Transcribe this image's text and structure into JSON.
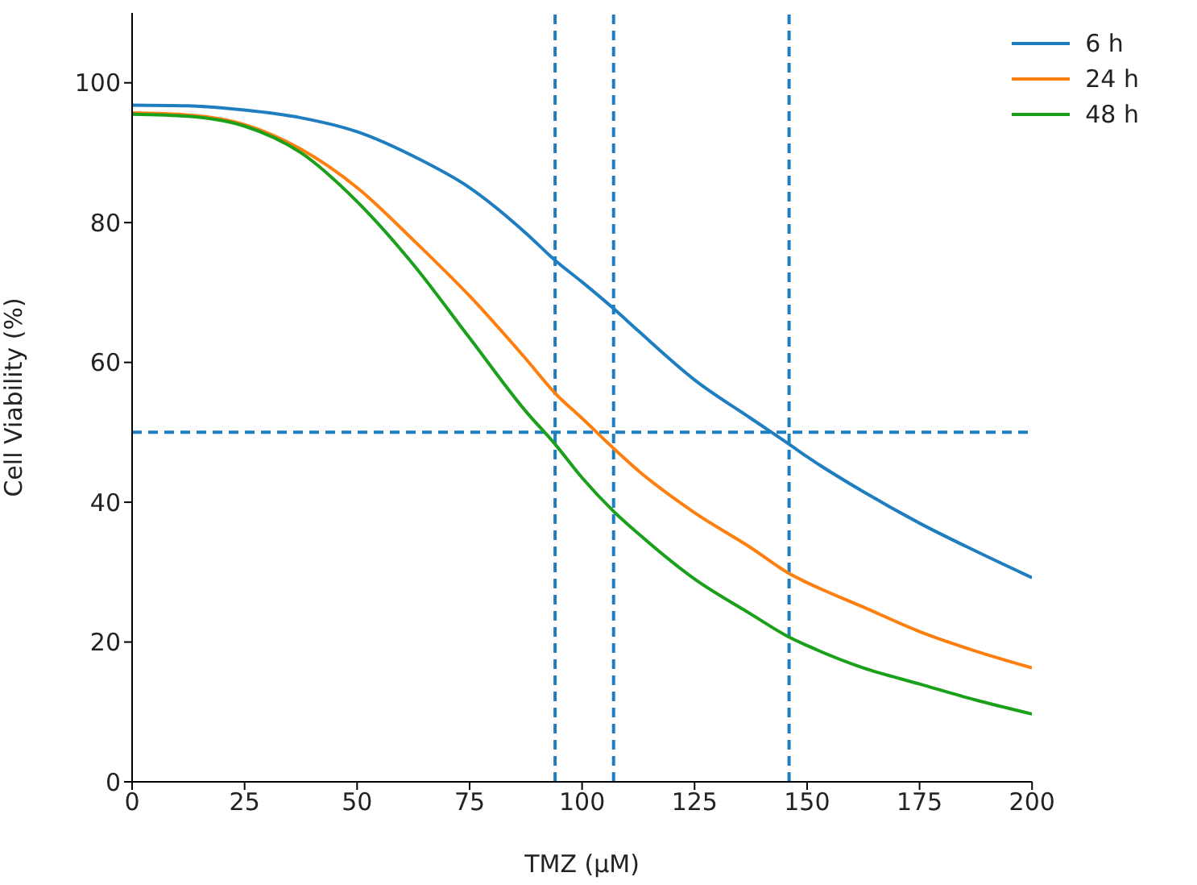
{
  "chart_data": {
    "type": "line",
    "xlabel": "TMZ (µM)",
    "ylabel": "Cell Viability (%)",
    "x": [
      0,
      12.5,
      25,
      37.5,
      50,
      62.5,
      75,
      87.5,
      94,
      100,
      107,
      112.5,
      125,
      137.5,
      146,
      150,
      162.5,
      175,
      187.5,
      200
    ],
    "series": [
      {
        "name": "6 h",
        "color": "#1f7ec0",
        "values": [
          96.8,
          96.7,
          96.1,
          95,
          93,
          89.5,
          85,
          78.5,
          74.6,
          71.5,
          67.7,
          64.5,
          57.5,
          52,
          48.3,
          46.5,
          41.5,
          37,
          33,
          29.2
        ]
      },
      {
        "name": "24 h",
        "color": "#ff7f0e",
        "values": [
          95.7,
          95.4,
          94,
          90.5,
          85,
          77.5,
          69.5,
          60.5,
          55.6,
          52,
          47.7,
          44.5,
          38.5,
          33.5,
          29.8,
          28.5,
          25,
          21.5,
          18.7,
          16.3
        ]
      },
      {
        "name": "48 h",
        "color": "#1aa01a",
        "values": [
          95.5,
          95.2,
          93.8,
          90,
          83,
          74,
          63.5,
          53,
          48.3,
          43.5,
          38.7,
          35.5,
          29,
          24,
          20.7,
          19.5,
          16.3,
          14,
          11.7,
          9.7
        ]
      }
    ],
    "xlim": [
      0,
      200
    ],
    "xticks": [
      0,
      25,
      50,
      75,
      100,
      125,
      150,
      175,
      200
    ],
    "ylim": [
      0,
      110
    ],
    "yticks": [
      0,
      20,
      40,
      60,
      80,
      100
    ],
    "ref_lines": [
      {
        "axis": "y",
        "value": 50,
        "color": "#1f7ec0",
        "line_style": "dashed"
      },
      {
        "axis": "x",
        "value": 94,
        "color": "#1f7ec0",
        "line_style": "dashed"
      },
      {
        "axis": "x",
        "value": 107,
        "color": "#1f7ec0",
        "line_style": "dashed"
      },
      {
        "axis": "x",
        "value": 146,
        "color": "#1f7ec0",
        "line_style": "dashed"
      }
    ],
    "grid": false,
    "legend": "top right",
    "marker": "none",
    "line_style": "solid"
  }
}
